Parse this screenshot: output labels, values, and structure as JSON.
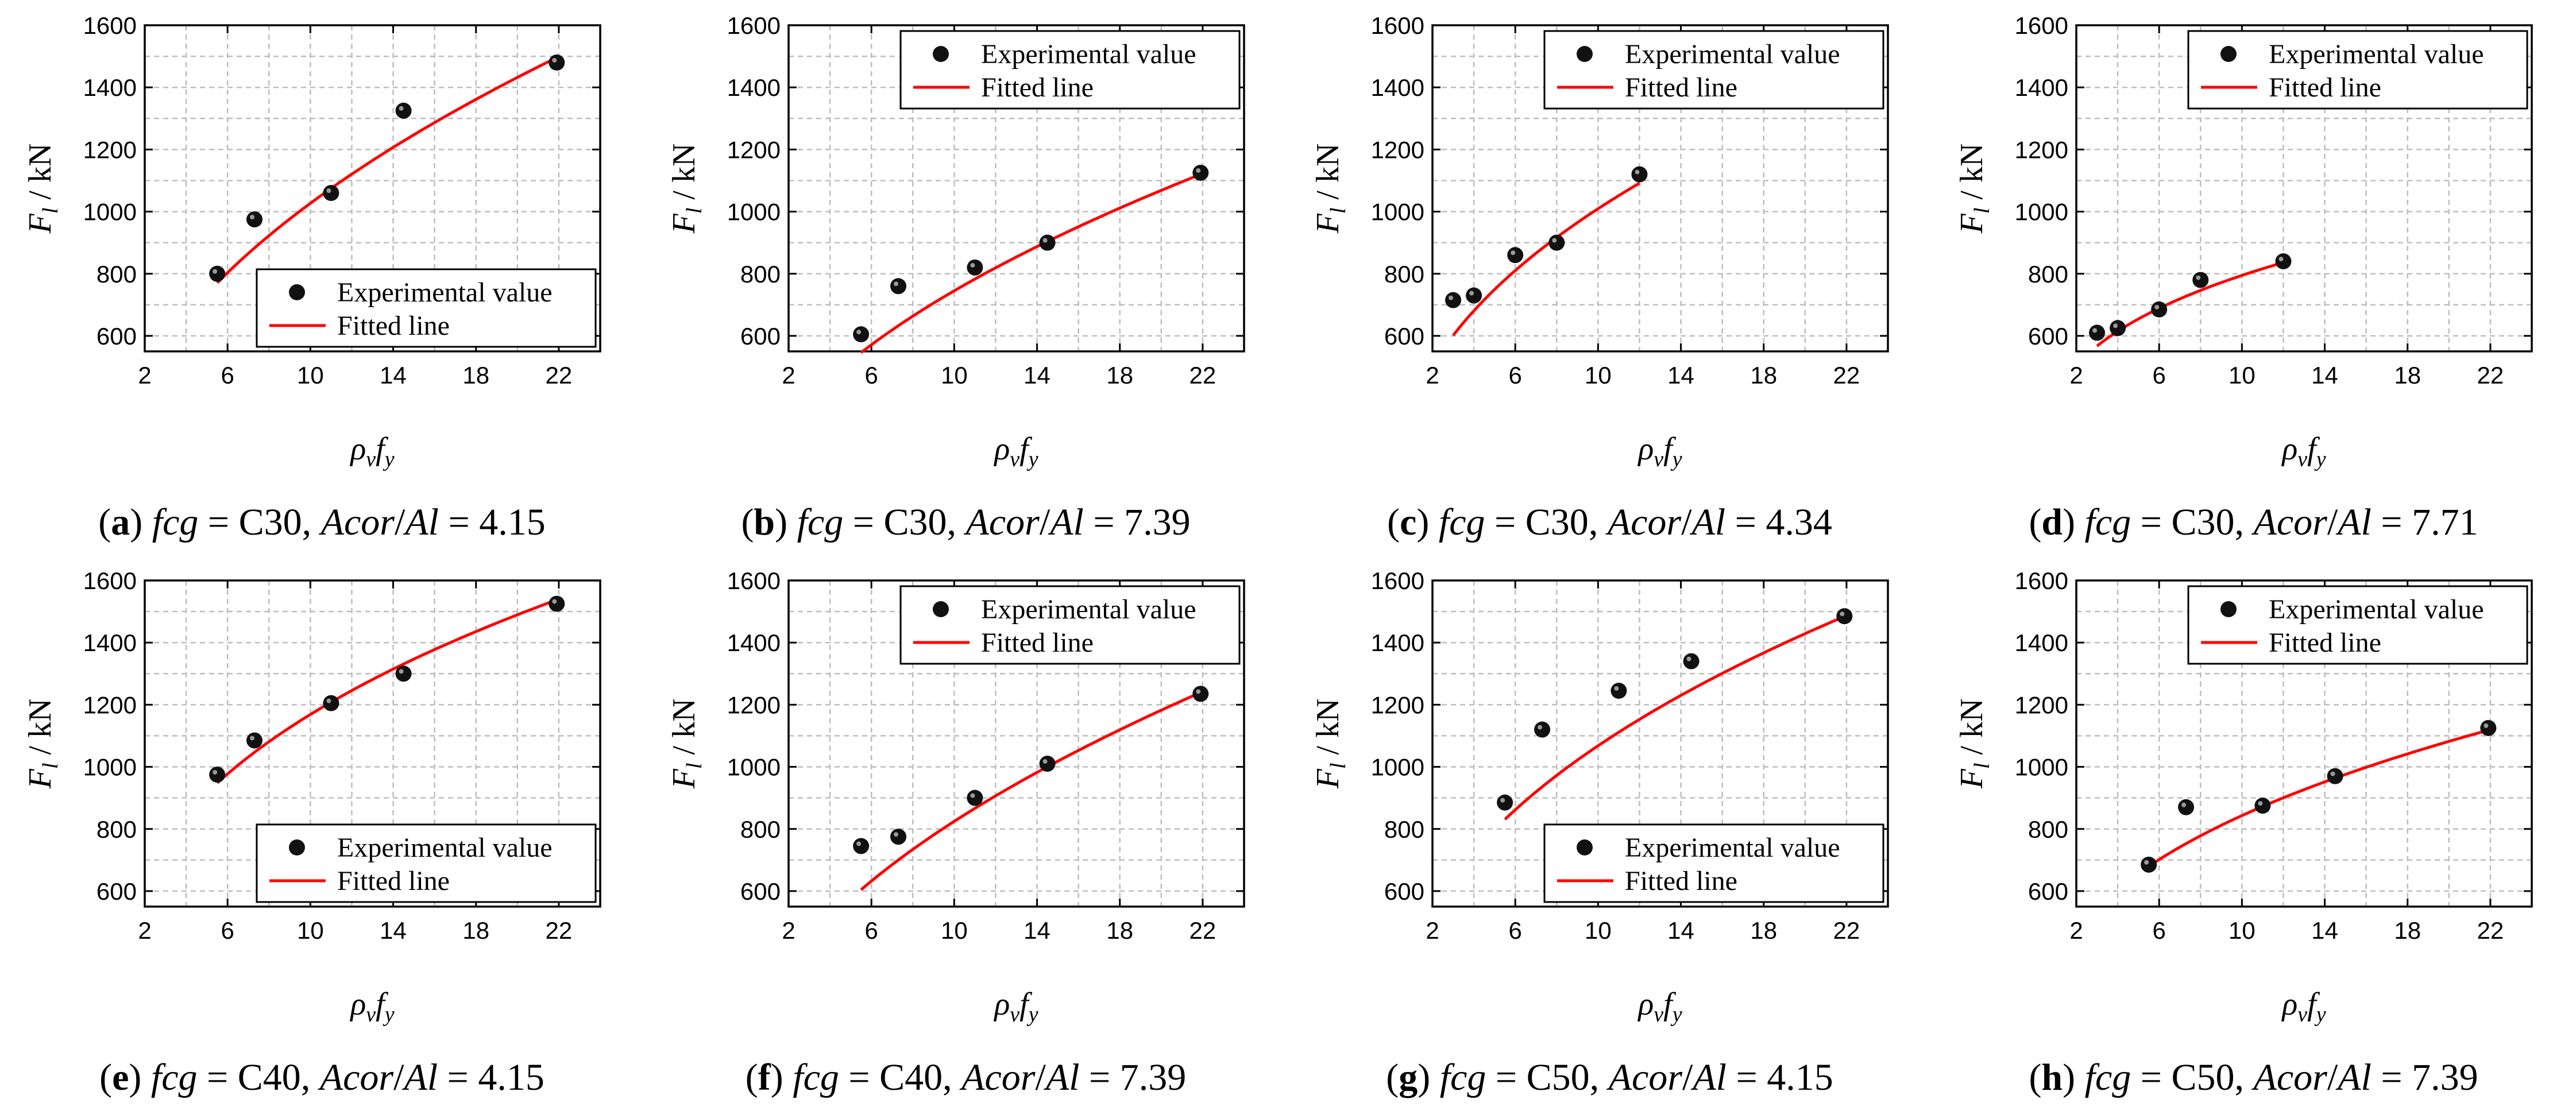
{
  "chart_data": [
    {
      "panel": "a",
      "concrete": "C30",
      "ratio": "4.15",
      "type": "scatter",
      "x": [
        5.5,
        7.3,
        11.0,
        14.5,
        21.9
      ],
      "values": [
        800,
        975,
        1060,
        1325,
        1480
      ],
      "fit_k": 340,
      "fit_p": 0.48,
      "xlim": [
        2,
        24
      ],
      "ylim": [
        550,
        1600
      ],
      "xticks": [
        "2",
        "6",
        "10",
        "14",
        "18",
        "22"
      ],
      "yticks": [
        "600",
        "800",
        "1000",
        "1200",
        "1400",
        "1600"
      ],
      "legend_position": "bottom-right"
    },
    {
      "panel": "b",
      "concrete": "C30",
      "ratio": "7.39",
      "type": "scatter",
      "x": [
        5.5,
        7.3,
        11.0,
        14.5,
        21.9
      ],
      "values": [
        605,
        760,
        820,
        900,
        1125
      ],
      "fit_k": 225,
      "fit_p": 0.52,
      "xlim": [
        2,
        24
      ],
      "ylim": [
        550,
        1600
      ],
      "xticks": [
        "2",
        "6",
        "10",
        "14",
        "18",
        "22"
      ],
      "yticks": [
        "600",
        "800",
        "1000",
        "1200",
        "1400",
        "1600"
      ],
      "legend_position": "top-right"
    },
    {
      "panel": "c",
      "concrete": "C30",
      "ratio": "4.34",
      "type": "scatter",
      "x": [
        3.0,
        4.0,
        6.0,
        8.0,
        12.0
      ],
      "values": [
        715,
        730,
        860,
        900,
        1120
      ],
      "fit_k": 375,
      "fit_p": 0.43,
      "xlim": [
        2,
        24
      ],
      "ylim": [
        550,
        1600
      ],
      "xticks": [
        "2",
        "6",
        "10",
        "14",
        "18",
        "22"
      ],
      "yticks": [
        "600",
        "800",
        "1000",
        "1200",
        "1400",
        "1600"
      ],
      "legend_position": "top-right"
    },
    {
      "panel": "d",
      "concrete": "C30",
      "ratio": "7.71",
      "type": "scatter",
      "x": [
        3.0,
        4.0,
        6.0,
        8.0,
        12.0
      ],
      "values": [
        610,
        625,
        685,
        780,
        840
      ],
      "fit_k": 417,
      "fit_p": 0.28,
      "xlim": [
        2,
        24
      ],
      "ylim": [
        550,
        1600
      ],
      "xticks": [
        "2",
        "6",
        "10",
        "14",
        "18",
        "22"
      ],
      "yticks": [
        "600",
        "800",
        "1000",
        "1200",
        "1400",
        "1600"
      ],
      "legend_position": "top-right"
    },
    {
      "panel": "e",
      "concrete": "C40",
      "ratio": "4.15",
      "type": "scatter",
      "x": [
        5.5,
        7.3,
        11.0,
        14.5,
        21.9
      ],
      "values": [
        975,
        1085,
        1205,
        1300,
        1525
      ],
      "fit_k": 522,
      "fit_p": 0.35,
      "xlim": [
        2,
        24
      ],
      "ylim": [
        550,
        1600
      ],
      "xticks": [
        "2",
        "6",
        "10",
        "14",
        "18",
        "22"
      ],
      "yticks": [
        "600",
        "800",
        "1000",
        "1200",
        "1400",
        "1600"
      ],
      "legend_position": "bottom-right"
    },
    {
      "panel": "f",
      "concrete": "C40",
      "ratio": "7.39",
      "type": "scatter",
      "x": [
        5.5,
        7.3,
        11.0,
        14.5,
        21.9
      ],
      "values": [
        745,
        775,
        900,
        1010,
        1235
      ],
      "fit_k": 249,
      "fit_p": 0.52,
      "xlim": [
        2,
        24
      ],
      "ylim": [
        550,
        1600
      ],
      "xticks": [
        "2",
        "6",
        "10",
        "14",
        "18",
        "22"
      ],
      "yticks": [
        "600",
        "800",
        "1000",
        "1200",
        "1400",
        "1600"
      ],
      "legend_position": "top-right"
    },
    {
      "panel": "g",
      "concrete": "C50",
      "ratio": "4.15",
      "type": "scatter",
      "x": [
        5.5,
        7.3,
        11.0,
        14.5,
        21.9
      ],
      "values": [
        885,
        1120,
        1245,
        1340,
        1485
      ],
      "fit_k": 406,
      "fit_p": 0.42,
      "xlim": [
        2,
        24
      ],
      "ylim": [
        550,
        1600
      ],
      "xticks": [
        "2",
        "6",
        "10",
        "14",
        "18",
        "22"
      ],
      "yticks": [
        "600",
        "800",
        "1000",
        "1200",
        "1400",
        "1600"
      ],
      "legend_position": "bottom-right"
    },
    {
      "panel": "h",
      "concrete": "C50",
      "ratio": "7.39",
      "type": "scatter",
      "x": [
        5.5,
        7.3,
        11.0,
        14.5,
        21.9
      ],
      "values": [
        685,
        870,
        875,
        970,
        1125
      ],
      "fit_k": 368,
      "fit_p": 0.36,
      "xlim": [
        2,
        24
      ],
      "ylim": [
        550,
        1600
      ],
      "xticks": [
        "2",
        "6",
        "10",
        "14",
        "18",
        "22"
      ],
      "yticks": [
        "600",
        "800",
        "1000",
        "1200",
        "1400",
        "1600"
      ],
      "legend_position": "top-right"
    }
  ],
  "common": {
    "legend_experimental": "Experimental value",
    "legend_fitted": "Fitted line",
    "ylabel": "F",
    "ylabel_sub": "l",
    "ylabel_unit": " / kN",
    "xlabel_rho": "ρ",
    "xlabel_rho_sub": "v",
    "xlabel_f": "f",
    "xlabel_f_sub": "y",
    "caption_fcg": "fcg",
    "caption_equals": " = ",
    "caption_acor": "Acor",
    "caption_slash": "/",
    "caption_al": "Al",
    "point_color": "#111111",
    "fit_color": "#ff0000",
    "grid_color": "#bdbdbd"
  }
}
